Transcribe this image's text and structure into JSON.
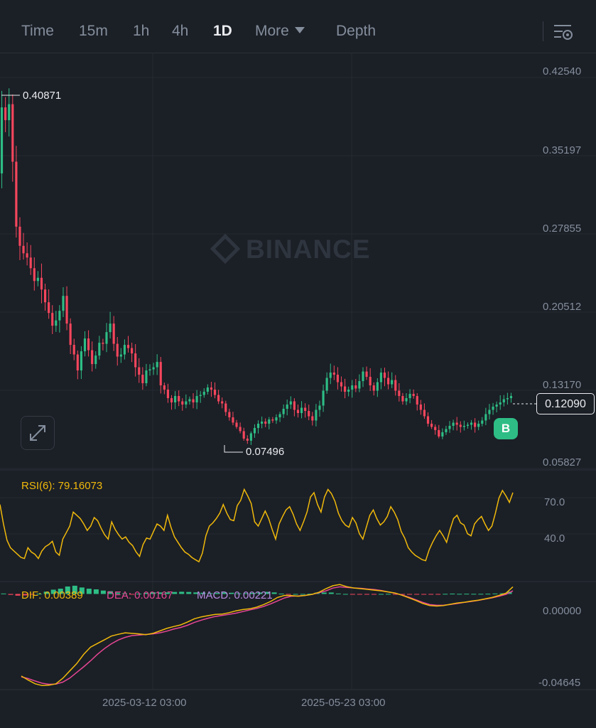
{
  "tabs": {
    "time": "Time",
    "m15": "15m",
    "h1": "1h",
    "h4": "4h",
    "d1": "1D",
    "more": "More",
    "depth": "Depth"
  },
  "watermark": "BINANCE",
  "price_axis": [
    "0.42540",
    "0.35197",
    "0.27855",
    "0.20512",
    "0.13170",
    "0.05827"
  ],
  "high_marker": "0.40871",
  "low_marker": "0.07496",
  "last_price": "0.12090",
  "badge_text": "B",
  "rsi": {
    "label": "RSI(6): 79.16073",
    "axis": [
      "70.0",
      "40.0"
    ]
  },
  "macd": {
    "dif": "DIF: 0.00389",
    "dea": "DEA: 0.00167",
    "macd": "MACD: 0.00221",
    "axis": [
      "0.00000",
      "-0.04645"
    ]
  },
  "time_axis": [
    "2025-03-12 03:00",
    "2025-05-23 03:00"
  ],
  "colors": {
    "up": "#2ebd85",
    "down": "#f6465d",
    "rsi": "#f0b90b",
    "dif": "#f0b90b",
    "dea": "#e74694",
    "macd_label": "#b78ae0",
    "background": "#1b1f26",
    "grid": "#262b33"
  },
  "icons": {
    "settings": "chart-settings-icon",
    "expand": "expand-icon"
  },
  "chart_data": {
    "type": "candlestick",
    "price_axis_range": [
      0.05827,
      0.4254
    ],
    "close_prices": [
      0.392,
      0.38,
      0.395,
      0.341,
      0.28,
      0.262,
      0.255,
      0.251,
      0.241,
      0.229,
      0.232,
      0.221,
      0.209,
      0.199,
      0.187,
      0.192,
      0.201,
      0.215,
      0.189,
      0.169,
      0.16,
      0.145,
      0.163,
      0.175,
      0.164,
      0.151,
      0.159,
      0.171,
      0.17,
      0.181,
      0.189,
      0.17,
      0.158,
      0.16,
      0.169,
      0.166,
      0.161,
      0.148,
      0.141,
      0.133,
      0.145,
      0.146,
      0.148,
      0.153,
      0.131,
      0.127,
      0.119,
      0.115,
      0.121,
      0.116,
      0.113,
      0.116,
      0.118,
      0.115,
      0.121,
      0.122,
      0.125,
      0.129,
      0.127,
      0.122,
      0.116,
      0.114,
      0.106,
      0.101,
      0.096,
      0.092,
      0.088,
      0.081,
      0.079,
      0.086,
      0.091,
      0.095,
      0.097,
      0.095,
      0.099,
      0.098,
      0.101,
      0.104,
      0.109,
      0.113,
      0.116,
      0.108,
      0.105,
      0.11,
      0.107,
      0.102,
      0.098,
      0.108,
      0.112,
      0.126,
      0.138,
      0.143,
      0.141,
      0.134,
      0.13,
      0.125,
      0.127,
      0.131,
      0.128,
      0.135,
      0.144,
      0.139,
      0.131,
      0.126,
      0.134,
      0.143,
      0.138,
      0.132,
      0.136,
      0.126,
      0.121,
      0.116,
      0.119,
      0.123,
      0.121,
      0.113,
      0.108,
      0.102,
      0.095,
      0.092,
      0.089,
      0.083,
      0.087,
      0.09,
      0.093,
      0.096,
      0.094,
      0.092,
      0.093,
      0.094,
      0.096,
      0.092,
      0.095,
      0.098,
      0.104,
      0.108,
      0.111,
      0.113,
      0.115,
      0.118,
      0.119,
      0.121
    ],
    "rsi_range": [
      0,
      100
    ],
    "rsi_levels": [
      70,
      40
    ],
    "rsi_series": [
      68,
      50,
      35,
      28,
      25,
      22,
      19,
      18,
      28,
      24,
      22,
      18,
      25,
      29,
      31,
      34,
      24,
      21,
      36,
      42,
      48,
      61,
      58,
      55,
      50,
      44,
      48,
      56,
      53,
      46,
      40,
      36,
      52,
      45,
      40,
      36,
      38,
      33,
      30,
      24,
      20,
      31,
      37,
      36,
      43,
      50,
      48,
      44,
      58,
      47,
      38,
      33,
      28,
      24,
      22,
      19,
      17,
      15,
      23,
      39,
      48,
      51,
      55,
      60,
      68,
      60,
      54,
      53,
      67,
      72,
      82,
      76,
      69,
      52,
      48,
      55,
      62,
      55,
      45,
      36,
      50,
      57,
      63,
      66,
      59,
      50,
      44,
      52,
      61,
      75,
      79,
      68,
      61,
      75,
      82,
      78,
      71,
      60,
      53,
      49,
      47,
      56,
      51,
      41,
      36,
      47,
      58,
      63,
      55,
      49,
      52,
      57,
      66,
      61,
      54,
      43,
      37,
      28,
      24,
      21,
      19,
      17,
      16,
      26,
      33,
      39,
      44,
      39,
      33,
      45,
      55,
      58,
      51,
      49,
      41,
      39,
      50,
      54,
      57,
      50,
      44,
      48,
      60,
      74,
      81,
      76,
      70,
      79
    ],
    "macd_range": [
      -0.0522,
      0.006
    ],
    "dif_series": [
      -0.0448,
      -0.047,
      -0.049,
      -0.05,
      -0.0498,
      -0.049,
      -0.046,
      -0.042,
      -0.038,
      -0.033,
      -0.029,
      -0.027,
      -0.025,
      -0.023,
      -0.022,
      -0.0212,
      -0.0215,
      -0.0218,
      -0.0222,
      -0.0215,
      -0.0202,
      -0.0188,
      -0.0178,
      -0.0169,
      -0.0153,
      -0.0135,
      -0.0125,
      -0.0118,
      -0.0112,
      -0.011,
      -0.0102,
      -0.0092,
      -0.0085,
      -0.0081,
      -0.0072,
      -0.0058,
      -0.0041,
      -0.0019,
      -0.0008,
      -0.0009,
      -0.0012,
      -0.0008,
      -0.0002,
      0.0009,
      0.0029,
      0.0045,
      0.0052,
      0.004,
      0.0033,
      0.0029,
      0.0025,
      0.0021,
      0.0017,
      0.0011,
      0.0005,
      -0.0007,
      -0.0021,
      -0.0036,
      -0.0052,
      -0.0063,
      -0.0066,
      -0.0063,
      -0.0056,
      -0.0049,
      -0.0045,
      -0.0039,
      -0.0034,
      -0.0027,
      -0.0019,
      -0.0008,
      0.0004,
      0.0039
    ],
    "dea_series": [
      -0.0452,
      -0.0462,
      -0.0475,
      -0.0487,
      -0.0493,
      -0.0492,
      -0.0481,
      -0.0459,
      -0.0428,
      -0.0398,
      -0.0365,
      -0.0329,
      -0.0298,
      -0.0272,
      -0.0251,
      -0.0237,
      -0.0227,
      -0.0224,
      -0.0221,
      -0.0218,
      -0.0212,
      -0.0203,
      -0.0192,
      -0.0183,
      -0.0171,
      -0.0155,
      -0.0143,
      -0.0132,
      -0.0123,
      -0.0117,
      -0.0111,
      -0.0105,
      -0.0096,
      -0.0087,
      -0.0079,
      -0.0068,
      -0.0054,
      -0.0038,
      -0.0022,
      -0.0012,
      -0.0011,
      -0.0008,
      -0.0002,
      0.0007,
      0.0017,
      0.0032,
      0.0039,
      0.0036,
      0.0033,
      0.0031,
      0.0027,
      0.0024,
      0.0019,
      0.0011,
      0.0004,
      -0.0006,
      -0.0018,
      -0.0032,
      -0.0046,
      -0.0058,
      -0.0062,
      -0.0061,
      -0.0057,
      -0.0052,
      -0.0046,
      -0.0041,
      -0.0035,
      -0.0028,
      -0.0021,
      -0.0012,
      -0.0002,
      0.0017
    ],
    "macd_hist": [
      0.0004,
      -0.0008,
      -0.0015,
      -0.0013,
      -0.0005,
      0.0002,
      0.0021,
      0.0039,
      0.0048,
      0.0068,
      0.0075,
      0.0059,
      0.0048,
      0.0042,
      0.0031,
      0.0025,
      0.0012,
      0.0006,
      -0.0001,
      0.0003,
      0.001,
      0.0015,
      0.0014,
      0.0014,
      0.0018,
      0.002,
      0.0018,
      0.0014,
      0.0011,
      0.0007,
      0.0009,
      0.0013,
      0.0011,
      0.0006,
      0.0007,
      0.001,
      0.0013,
      0.0019,
      0.0014,
      0.0003,
      -0.0001,
      0,
      0,
      0.0002,
      0.0012,
      0.0013,
      0.0013,
      0.0004,
      0,
      -0.0002,
      -0.0002,
      -0.0003,
      -0.0002,
      0,
      0.0001,
      -0.0001,
      -0.0003,
      -0.0004,
      -0.0006,
      -0.0005,
      -0.0004,
      -0.0002,
      0.0001,
      0.0003,
      0.0001,
      0.0002,
      0.0001,
      0.0001,
      0.0002,
      0.0004,
      0.0006,
      0.0022
    ],
    "macd_hist_scale": 0.6
  }
}
